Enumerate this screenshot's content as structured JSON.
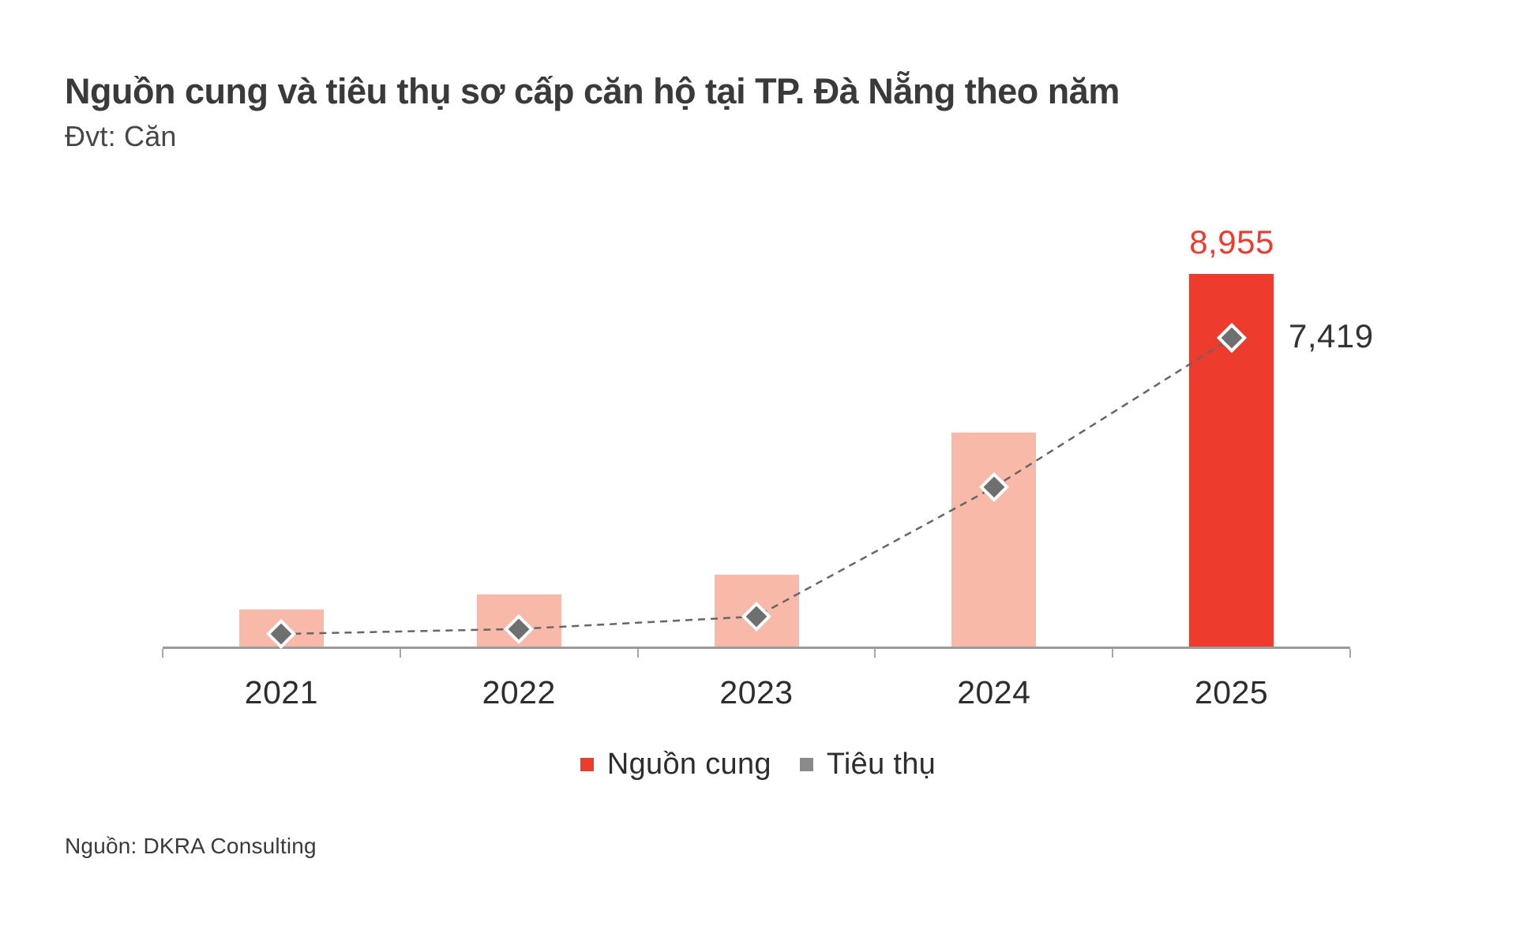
{
  "header": {
    "title": "Nguồn cung và tiêu thụ sơ cấp căn hộ tại TP. Đà Nẵng theo năm",
    "unit": "Đvt: Căn"
  },
  "chart_data": {
    "type": "combo",
    "title": "Nguồn cung và tiêu thụ sơ cấp căn hộ tại TP. Đà Nẵng theo năm",
    "unit_label": "Đvt: Căn",
    "categories": [
      "2021",
      "2022",
      "2023",
      "2024",
      "2025"
    ],
    "series": [
      {
        "name": "Nguồn cung",
        "type": "bar",
        "values": [
          910,
          1270,
          1740,
          5150,
          8955
        ],
        "color": "#ED3B2D",
        "muted_color": "#F8B9A9",
        "highlight_index": 4
      },
      {
        "name": "Tiêu thụ",
        "type": "line",
        "values": [
          320,
          440,
          740,
          3840,
          7419
        ],
        "marker": "diamond",
        "marker_color": "#6F6F6F",
        "line_color": "#666666",
        "line_style": "dashed"
      }
    ],
    "data_labels": {
      "supply_2025": "8,955",
      "consumption_2025": "7,419"
    },
    "ylim": [
      0,
      9500
    ],
    "grid": false,
    "legend_position": "bottom"
  },
  "legend": {
    "items": [
      {
        "label": "Nguồn cung",
        "color": "#ED3B2D"
      },
      {
        "label": "Tiêu thụ",
        "color": "#8A8A8A"
      }
    ]
  },
  "footer": {
    "source": "Nguồn: DKRA Consulting"
  },
  "colors": {
    "accent_red": "#ED3B2D",
    "bar_muted_pink": "#F8B9A9",
    "marker_gray": "#6F6F6F",
    "line_gray": "#666666",
    "axis_gray": "#9B9B9B",
    "title_dark": "#3A3A3A",
    "text_dark": "#2D2D2D"
  }
}
